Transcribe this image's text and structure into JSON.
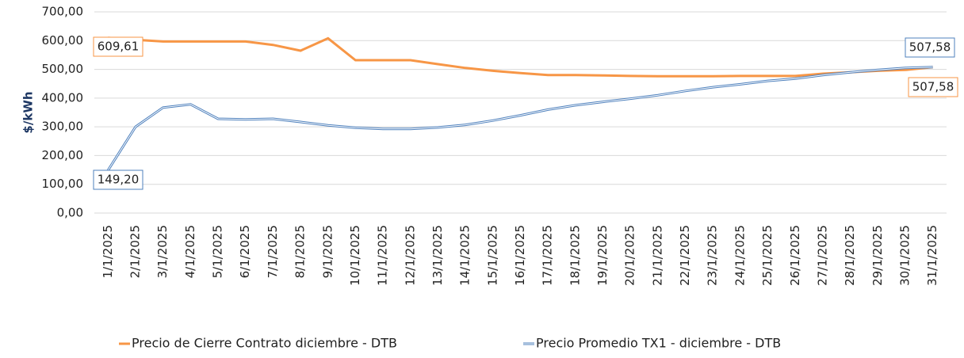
{
  "chart_data": {
    "type": "line",
    "y_label": "$/kWh",
    "categories": [
      "1/1/2025",
      "2/1/2025",
      "3/1/2025",
      "4/1/2025",
      "5/1/2025",
      "6/1/2025",
      "7/1/2025",
      "8/1/2025",
      "9/1/2025",
      "10/1/2025",
      "11/1/2025",
      "12/1/2025",
      "13/1/2025",
      "14/1/2025",
      "15/1/2025",
      "16/1/2025",
      "17/1/2025",
      "18/1/2025",
      "19/1/2025",
      "20/1/2025",
      "21/1/2025",
      "22/1/2025",
      "23/1/2025",
      "24/1/2025",
      "25/1/2025",
      "26/1/2025",
      "27/1/2025",
      "28/1/2025",
      "29/1/2025",
      "30/1/2025",
      "31/1/2025"
    ],
    "series": [
      {
        "name": "Precio de Cierre Contrato diciembre - DTB",
        "color": "#f79646",
        "values": [
          609.61,
          603,
          597,
          597,
          597,
          597,
          585,
          565,
          608,
          532,
          532,
          532,
          518,
          505,
          495,
          487,
          480,
          480,
          479,
          477,
          476,
          476,
          476,
          477,
          477,
          477,
          485,
          490,
          495,
          498,
          507.58
        ],
        "value_labels": [
          "609,61",
          null,
          null,
          null,
          null,
          null,
          null,
          null,
          null,
          null,
          null,
          null,
          null,
          null,
          null,
          null,
          null,
          null,
          null,
          null,
          null,
          null,
          null,
          null,
          null,
          null,
          null,
          null,
          null,
          null,
          "507,58"
        ]
      },
      {
        "name": "Precio Promedio TX1 - diciembre - DTB",
        "color": "#4f81bd",
        "values": [
          149.2,
          300,
          367,
          378,
          328,
          326,
          328,
          317,
          305,
          297,
          293,
          293,
          298,
          307,
          322,
          340,
          360,
          375,
          387,
          398,
          410,
          425,
          438,
          448,
          460,
          468,
          480,
          490,
          498,
          505,
          507.58
        ],
        "value_labels": [
          "149,20",
          null,
          null,
          null,
          null,
          null,
          null,
          null,
          null,
          null,
          null,
          null,
          null,
          null,
          null,
          null,
          null,
          null,
          null,
          null,
          null,
          null,
          null,
          null,
          null,
          null,
          null,
          null,
          null,
          null,
          "507,58"
        ]
      }
    ],
    "ylim": [
      0,
      700
    ],
    "yticks": [
      {
        "value": 0,
        "label": "0,00"
      },
      {
        "value": 100,
        "label": "100,00"
      },
      {
        "value": 200,
        "label": "200,00"
      },
      {
        "value": 300,
        "label": "300,00"
      },
      {
        "value": 400,
        "label": "400,00"
      },
      {
        "value": 500,
        "label": "500,00"
      },
      {
        "value": 600,
        "label": "600,00"
      },
      {
        "value": 700,
        "label": "700,00"
      }
    ],
    "grid": true
  }
}
